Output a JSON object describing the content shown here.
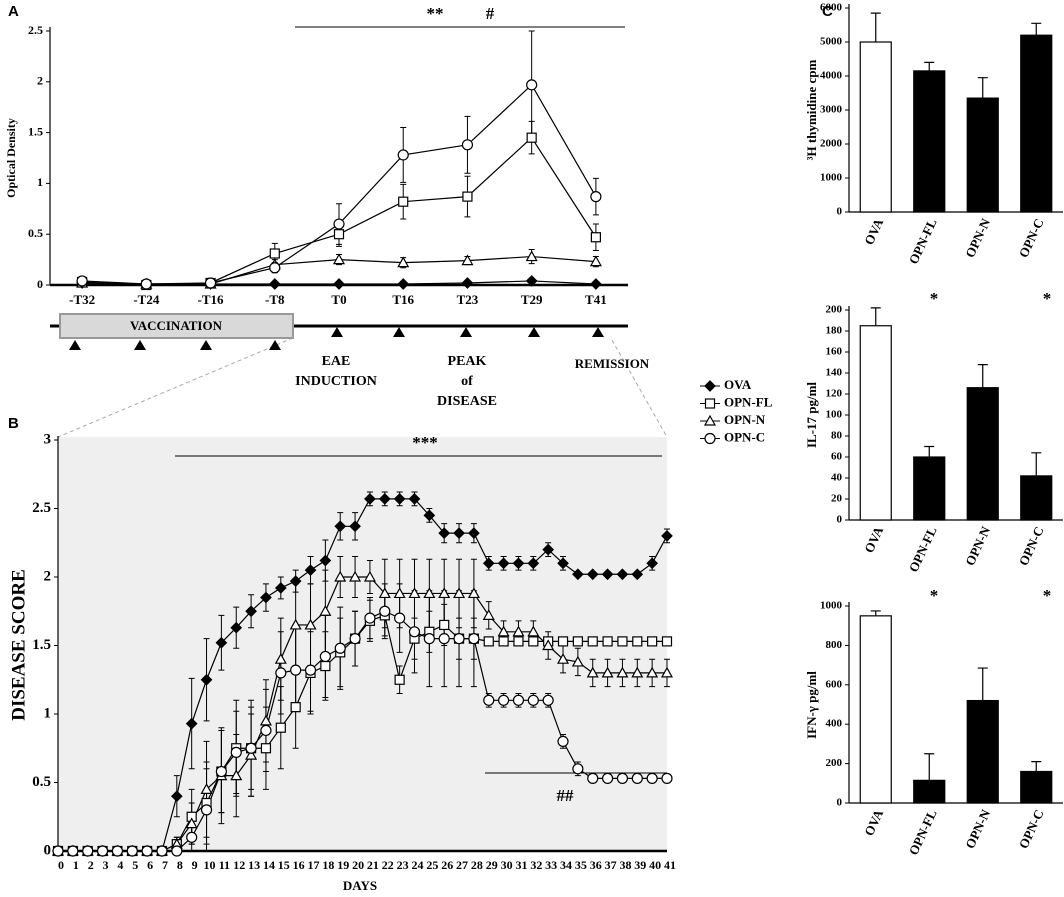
{
  "chart_data": [
    {
      "type": "line",
      "panel": "A",
      "ylabel": "Optical Density",
      "categories": [
        "-T32",
        "-T24",
        "-T16",
        "-T8",
        "T0",
        "T16",
        "T23",
        "T29",
        "T41"
      ],
      "ylim": [
        0,
        2.5
      ],
      "yticks": [
        0,
        0.5,
        1,
        1.5,
        2,
        2.5
      ],
      "grid": false,
      "annotations": [
        "**",
        "#",
        "VACCINATION",
        [
          "EAE",
          "INDUCTION"
        ],
        [
          "PEAK",
          "of",
          "DISEASE"
        ],
        "REMISSION"
      ],
      "series": [
        {
          "name": "OVA",
          "color": "#000000",
          "marker": "diamond",
          "filled": true,
          "values": [
            0.02,
            0.01,
            0.01,
            0.01,
            0.01,
            0.01,
            0.02,
            0.04,
            0.01
          ],
          "errors": [
            0.01,
            0.01,
            0.01,
            0.01,
            0.01,
            0.01,
            0.01,
            0.02,
            0.01
          ]
        },
        {
          "name": "OPN-FL",
          "color": "#000000",
          "marker": "square",
          "filled": false,
          "values": [
            0.03,
            0,
            0.02,
            0.31,
            0.5,
            0.82,
            0.87,
            1.45,
            0.47
          ],
          "errors": [
            0.03,
            0.02,
            0.02,
            0.1,
            0.12,
            0.17,
            0.2,
            0.16,
            0.13
          ]
        },
        {
          "name": "OPN-N",
          "color": "#000000",
          "marker": "triangle",
          "filled": false,
          "values": [
            0.02,
            0.01,
            0.01,
            0.2,
            0.25,
            0.22,
            0.24,
            0.28,
            0.23
          ],
          "errors": [
            0.02,
            0.02,
            0.02,
            0.05,
            0.05,
            0.05,
            0.04,
            0.07,
            0.05
          ]
        },
        {
          "name": "OPN-C",
          "color": "#000000",
          "marker": "circle",
          "filled": false,
          "values": [
            0.04,
            0.01,
            0.02,
            0.17,
            0.6,
            1.28,
            1.38,
            1.97,
            0.87
          ],
          "errors": [
            0.03,
            0.02,
            0.02,
            0.05,
            0.2,
            0.27,
            0.28,
            0.53,
            0.18
          ]
        }
      ]
    },
    {
      "type": "line",
      "panel": "B",
      "ylabel": "DISEASE SCORE",
      "xlabel": "DAYS",
      "x": [
        0,
        1,
        2,
        3,
        4,
        5,
        6,
        7,
        8,
        9,
        10,
        11,
        12,
        13,
        14,
        15,
        16,
        17,
        18,
        19,
        20,
        21,
        22,
        23,
        24,
        25,
        26,
        27,
        28,
        29,
        30,
        31,
        32,
        33,
        34,
        35,
        36,
        37,
        38,
        39,
        40,
        41
      ],
      "xlim": [
        0,
        41
      ],
      "ylim": [
        0,
        3
      ],
      "yticks": [
        0,
        0.5,
        1,
        1.5,
        2,
        2.5,
        3
      ],
      "grid": false,
      "annotations": [
        "***",
        "##"
      ],
      "series": [
        {
          "name": "OVA",
          "color": "#000000",
          "marker": "diamond",
          "filled": true,
          "values": [
            0,
            0,
            0,
            0,
            0,
            0,
            0,
            0,
            0.4,
            0.93,
            1.25,
            1.52,
            1.63,
            1.75,
            1.85,
            1.92,
            1.97,
            2.05,
            2.12,
            2.37,
            2.37,
            2.57,
            2.57,
            2.57,
            2.57,
            2.45,
            2.32,
            2.32,
            2.32,
            2.1,
            2.1,
            2.1,
            2.1,
            2.2,
            2.1,
            2.02,
            2.02,
            2.02,
            2.02,
            2.02,
            2.1,
            2.3
          ],
          "errors": [
            0,
            0,
            0,
            0,
            0,
            0,
            0,
            0,
            0.15,
            0.33,
            0.3,
            0.2,
            0.15,
            0.12,
            0.1,
            0.08,
            0.08,
            0.1,
            0.15,
            0.1,
            0.1,
            0.05,
            0.05,
            0.05,
            0.05,
            0.05,
            0.07,
            0.07,
            0.07,
            0.05,
            0.05,
            0.05,
            0.05,
            0.05,
            0.05,
            0,
            0,
            0,
            0,
            0,
            0.05,
            0.05
          ]
        },
        {
          "name": "OPN-FL",
          "color": "#000000",
          "marker": "square",
          "filled": false,
          "values": [
            0,
            0,
            0,
            0,
            0,
            0,
            0,
            0,
            0.05,
            0.25,
            0.35,
            0.58,
            0.75,
            0.75,
            0.75,
            0.9,
            1.05,
            1.3,
            1.35,
            1.45,
            1.55,
            1.68,
            1.72,
            1.25,
            1.55,
            1.6,
            1.65,
            1.55,
            1.55,
            1.53,
            1.53,
            1.53,
            1.53,
            1.53,
            1.53,
            1.53,
            1.53,
            1.53,
            1.53,
            1.53,
            1.53,
            1.53
          ],
          "errors": [
            0,
            0,
            0,
            0,
            0,
            0,
            0,
            0,
            0.05,
            0.2,
            0.3,
            0.3,
            0.35,
            0.35,
            0.3,
            0.3,
            0.3,
            0.3,
            0.25,
            0.25,
            0.2,
            0.15,
            0.15,
            0.1,
            0.15,
            0.15,
            0.15,
            0.15,
            0.15,
            0,
            0,
            0,
            0,
            0,
            0,
            0,
            0,
            0,
            0,
            0,
            0,
            0
          ]
        },
        {
          "name": "OPN-N",
          "color": "#000000",
          "marker": "triangle",
          "filled": false,
          "values": [
            0,
            0,
            0,
            0,
            0,
            0,
            0,
            0,
            0.05,
            0.2,
            0.45,
            0.55,
            0.55,
            0.7,
            0.95,
            1.4,
            1.65,
            1.65,
            1.75,
            2.0,
            2.0,
            2.0,
            1.88,
            1.88,
            1.88,
            1.88,
            1.88,
            1.88,
            1.88,
            1.72,
            1.6,
            1.6,
            1.6,
            1.5,
            1.4,
            1.38,
            1.3,
            1.3,
            1.3,
            1.3,
            1.3,
            1.3
          ],
          "errors": [
            0,
            0,
            0,
            0,
            0,
            0,
            0,
            0,
            0.05,
            0.15,
            0.35,
            0.35,
            0.3,
            0.3,
            0.3,
            0.3,
            0.3,
            0.3,
            0.3,
            0.15,
            0.15,
            0.12,
            0.25,
            0.25,
            0.25,
            0.25,
            0.25,
            0.25,
            0.25,
            0.1,
            0.08,
            0.08,
            0.08,
            0.1,
            0.1,
            0.1,
            0.1,
            0.1,
            0.1,
            0.1,
            0.1,
            0.1
          ]
        },
        {
          "name": "OPN-C",
          "color": "#000000",
          "marker": "circle",
          "filled": false,
          "values": [
            0,
            0,
            0,
            0,
            0,
            0,
            0,
            0,
            0,
            0.1,
            0.3,
            0.58,
            0.72,
            0.75,
            0.88,
            1.3,
            1.32,
            1.32,
            1.42,
            1.48,
            1.55,
            1.7,
            1.75,
            1.7,
            1.6,
            1.55,
            1.55,
            1.55,
            1.55,
            1.1,
            1.1,
            1.1,
            1.1,
            1.1,
            0.8,
            0.6,
            0.53,
            0.53,
            0.53,
            0.53,
            0.53,
            0.53
          ],
          "errors": [
            0,
            0,
            0,
            0,
            0,
            0,
            0,
            0,
            0,
            0.1,
            0.3,
            0.3,
            0.3,
            0.3,
            0.3,
            0.3,
            0.3,
            0.3,
            0.3,
            0.3,
            0.2,
            0.15,
            0.2,
            0.25,
            0.3,
            0.35,
            0.35,
            0.35,
            0.35,
            0.05,
            0.05,
            0.05,
            0.05,
            0.05,
            0.05,
            0.05,
            0,
            0,
            0,
            0,
            0,
            0
          ]
        }
      ]
    },
    {
      "type": "bar",
      "panel": "C",
      "ylabel": "³H thymidine cpm",
      "categories": [
        "OVA",
        "OPN-FL",
        "OPN-N",
        "OPN-C"
      ],
      "values": [
        5000,
        4150,
        3350,
        5200
      ],
      "errors": [
        850,
        250,
        600,
        350
      ],
      "colors": [
        "#ffffff",
        "#000000",
        "#000000",
        "#000000"
      ],
      "ylim": [
        0,
        6000
      ],
      "yticks": [
        0,
        1000,
        2000,
        3000,
        4000,
        5000,
        6000
      ],
      "grid": false
    },
    {
      "type": "bar",
      "ylabel": "IL-17 pg/ml",
      "categories": [
        "OVA",
        "OPN-FL",
        "OPN-N",
        "OPN-C"
      ],
      "values": [
        185,
        60,
        126,
        42
      ],
      "errors": [
        17,
        10,
        22,
        22
      ],
      "colors": [
        "#ffffff",
        "#000000",
        "#000000",
        "#000000"
      ],
      "ylim": [
        0,
        200
      ],
      "yticks": [
        0,
        20,
        40,
        60,
        80,
        100,
        120,
        140,
        160,
        180,
        200
      ],
      "grid": false,
      "annotations": [
        "*",
        "*"
      ]
    },
    {
      "type": "bar",
      "ylabel": "IFN-γ pg/ml",
      "categories": [
        "OVA",
        "OPN-FL",
        "OPN-N",
        "OPN-C"
      ],
      "values": [
        950,
        115,
        520,
        160
      ],
      "errors": [
        25,
        135,
        165,
        50
      ],
      "colors": [
        "#ffffff",
        "#000000",
        "#000000",
        "#000000"
      ],
      "ylim": [
        0,
        1000
      ],
      "yticks": [
        0,
        200,
        400,
        600,
        800,
        1000
      ],
      "grid": false,
      "annotations": [
        "*",
        "*"
      ]
    }
  ]
}
